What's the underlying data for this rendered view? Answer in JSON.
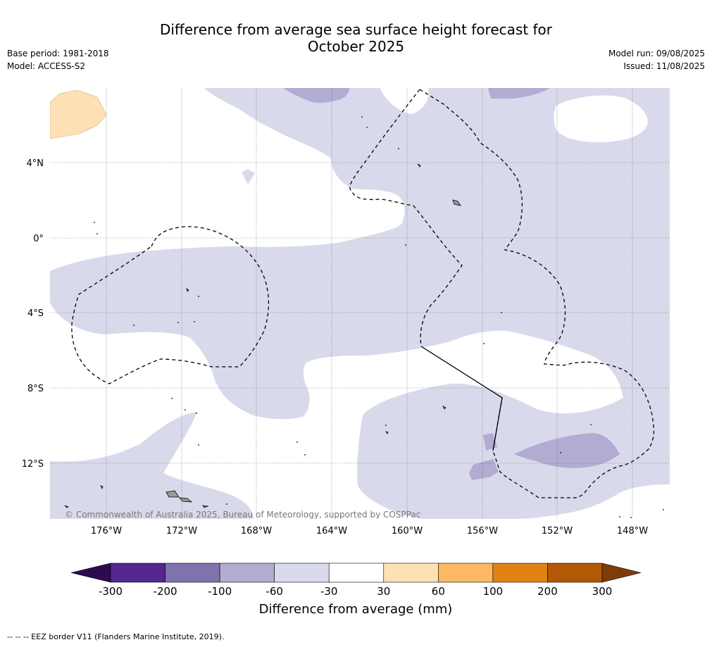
{
  "header": {
    "title_line1": "Difference from average sea surface height forecast for",
    "title_line2": "October 2025",
    "base_period": "Base period: 1981-2018",
    "model": "Model: ACCESS-S2",
    "model_run": "Model run: 09/08/2025",
    "issued": "Issued: 11/08/2025"
  },
  "map": {
    "lat_labels": [
      "4°N",
      "0°",
      "4°S",
      "8°S",
      "12°S"
    ],
    "lon_labels": [
      "176°W",
      "172°W",
      "168°W",
      "164°W",
      "160°W",
      "156°W",
      "152°W",
      "148°W"
    ],
    "copyright": "© Commonwealth of Australia 2025, Bureau of Meteorology, supported by COSPPac"
  },
  "colorbar": {
    "ticks": [
      "-300",
      "-200",
      "-100",
      "-60",
      "-30",
      "30",
      "60",
      "100",
      "200",
      "300"
    ],
    "colors": [
      "#2d0a4e",
      "#54278f",
      "#8073ac",
      "#b2abd2",
      "#d8daeb",
      "#ffffff",
      "#fee0b6",
      "#fdb863",
      "#e08214",
      "#b35806",
      "#7f3b08"
    ],
    "label": "Difference from average (mm)"
  },
  "footnote": "--  --  -- EEZ border V11 (Flanders Marine Institute, 2019)."
}
